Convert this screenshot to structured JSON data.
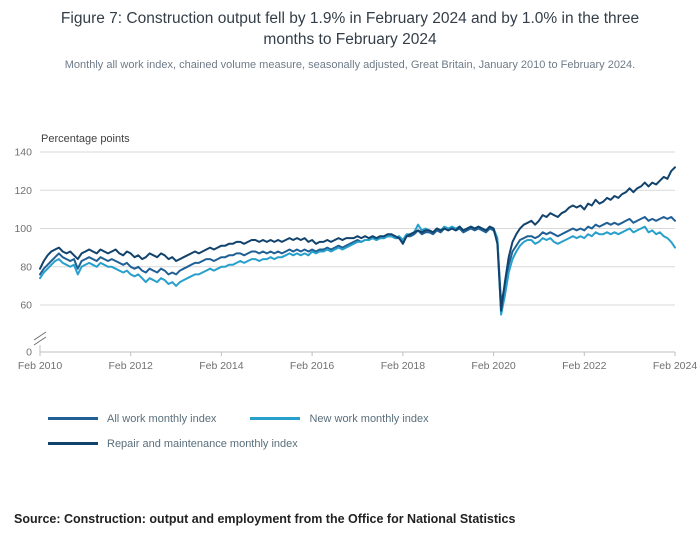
{
  "chart_data": {
    "type": "line",
    "title": "Figure 7: Construction output fell by 1.9% in February 2024 and by 1.0% in the three months to February 2024",
    "subtitle": "Monthly all work index, chained volume measure, seasonally adjusted, Great Britain, January 2010 to February 2024.",
    "y_axis_label": "Percentage points",
    "y_ticks": [
      0,
      60,
      80,
      100,
      120,
      140
    ],
    "ylim_displayed": [
      60,
      140
    ],
    "axis_break_between": [
      0,
      60
    ],
    "grid": "horizontal",
    "legend_position": "bottom-left",
    "x_frequency": "monthly",
    "x_start": "Feb 2010",
    "x_end": "Feb 2024",
    "x_tick_labels": [
      "Feb 2010",
      "Feb 2012",
      "Feb 2014",
      "Feb 2016",
      "Feb 2018",
      "Feb 2020",
      "Feb 2022",
      "Feb 2024"
    ],
    "x_tick_indices": [
      0,
      24,
      48,
      72,
      96,
      120,
      144,
      168
    ],
    "colors": {
      "grid": "#D9D9D9",
      "axis": "#BFBFBF",
      "tick_text": "#707071"
    },
    "series": [
      {
        "name": "All work monthly index",
        "color": "#206095",
        "values": [
          76,
          79,
          81,
          83,
          85,
          87,
          85,
          84,
          83,
          84,
          79,
          83,
          84,
          85,
          84,
          83,
          85,
          84,
          83,
          84,
          83,
          82,
          81,
          82,
          80,
          79,
          80,
          78,
          77,
          79,
          78,
          77,
          79,
          78,
          76,
          77,
          76,
          78,
          79,
          80,
          81,
          82,
          82,
          83,
          84,
          84,
          83,
          84,
          85,
          85,
          86,
          86,
          87,
          87,
          86,
          87,
          88,
          88,
          87,
          88,
          87,
          88,
          87,
          88,
          87,
          88,
          89,
          88,
          89,
          88,
          89,
          88,
          89,
          88,
          89,
          89,
          90,
          89,
          90,
          91,
          90,
          91,
          92,
          93,
          94,
          93,
          94,
          94,
          95,
          94,
          95,
          95,
          96,
          96,
          95,
          95,
          93,
          96,
          96,
          97,
          99,
          97,
          98,
          98,
          97,
          99,
          98,
          100,
          99,
          100,
          99,
          100,
          98,
          99,
          100,
          99,
          100,
          99,
          98,
          100,
          99,
          94,
          61,
          70,
          81,
          88,
          91,
          94,
          95,
          96,
          96,
          95,
          96,
          98,
          97,
          98,
          97,
          96,
          97,
          98,
          99,
          100,
          99,
          100,
          99,
          101,
          100,
          102,
          101,
          102,
          103,
          102,
          103,
          102,
          103,
          104,
          105,
          103,
          104,
          105,
          106,
          104,
          105,
          104,
          105,
          106,
          105,
          106,
          104
        ]
      },
      {
        "name": "New work monthly index",
        "color": "#27A0CC",
        "values": [
          74,
          77,
          79,
          81,
          83,
          84,
          82,
          81,
          80,
          81,
          76,
          80,
          81,
          82,
          81,
          80,
          82,
          81,
          80,
          80,
          79,
          78,
          77,
          78,
          76,
          75,
          76,
          74,
          72,
          74,
          73,
          72,
          74,
          73,
          71,
          72,
          70,
          72,
          73,
          74,
          75,
          76,
          76,
          77,
          78,
          79,
          78,
          79,
          80,
          80,
          81,
          81,
          82,
          83,
          82,
          83,
          84,
          84,
          83,
          84,
          84,
          85,
          84,
          85,
          85,
          86,
          87,
          86,
          87,
          86,
          87,
          86,
          88,
          87,
          88,
          88,
          89,
          88,
          89,
          90,
          89,
          90,
          91,
          92,
          93,
          93,
          94,
          94,
          95,
          94,
          95,
          95,
          96,
          96,
          95,
          96,
          94,
          97,
          97,
          98,
          102,
          99,
          100,
          99,
          98,
          100,
          99,
          101,
          100,
          101,
          100,
          101,
          99,
          100,
          101,
          100,
          101,
          100,
          99,
          101,
          100,
          95,
          55,
          65,
          77,
          84,
          88,
          91,
          93,
          94,
          94,
          92,
          93,
          95,
          94,
          95,
          93,
          92,
          93,
          94,
          95,
          96,
          95,
          96,
          95,
          97,
          96,
          98,
          97,
          97,
          98,
          97,
          98,
          97,
          98,
          99,
          100,
          98,
          99,
          100,
          101,
          98,
          99,
          97,
          98,
          96,
          95,
          93,
          90
        ]
      },
      {
        "name": "Repair and maintenance monthly index",
        "color": "#12436D",
        "values": [
          79,
          83,
          86,
          88,
          89,
          90,
          88,
          87,
          88,
          86,
          84,
          87,
          88,
          89,
          88,
          87,
          89,
          88,
          87,
          88,
          89,
          87,
          86,
          88,
          87,
          85,
          86,
          84,
          85,
          87,
          86,
          85,
          87,
          86,
          84,
          85,
          83,
          84,
          85,
          86,
          87,
          88,
          87,
          88,
          89,
          90,
          89,
          90,
          91,
          91,
          92,
          92,
          93,
          93,
          92,
          93,
          94,
          94,
          93,
          94,
          93,
          94,
          93,
          94,
          93,
          94,
          95,
          94,
          95,
          94,
          95,
          93,
          94,
          92,
          93,
          93,
          94,
          93,
          94,
          95,
          94,
          95,
          95,
          95,
          96,
          95,
          96,
          95,
          96,
          95,
          96,
          96,
          97,
          97,
          96,
          95,
          92,
          96,
          97,
          98,
          99,
          98,
          99,
          99,
          98,
          100,
          99,
          100,
          99,
          100,
          99,
          101,
          99,
          100,
          101,
          100,
          101,
          100,
          99,
          101,
          100,
          92,
          57,
          72,
          85,
          93,
          97,
          100,
          102,
          103,
          104,
          102,
          104,
          107,
          106,
          108,
          107,
          106,
          108,
          109,
          111,
          112,
          111,
          112,
          110,
          113,
          112,
          115,
          113,
          114,
          116,
          115,
          117,
          116,
          118,
          119,
          121,
          119,
          121,
          122,
          124,
          122,
          124,
          123,
          125,
          127,
          126,
          130,
          132
        ]
      }
    ]
  },
  "source": "Source: Construction: output and employment from the Office for National Statistics"
}
